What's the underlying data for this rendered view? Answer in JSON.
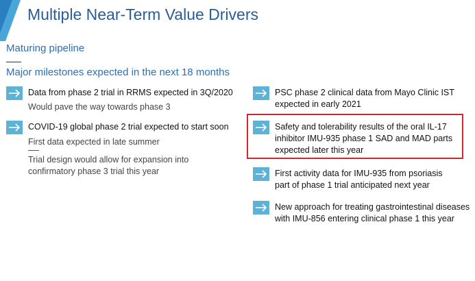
{
  "slide": {
    "title": "Multiple Near-Term Value Drivers",
    "subtitle": "Maturing pipeline",
    "section_heading": "Major milestones expected in the next 18 months"
  },
  "left_column": [
    {
      "heading": "Data from phase 2 trial in RRMS expected in 3Q/2020",
      "subs": [
        "Would pave the way towards phase 3"
      ]
    },
    {
      "heading": "COVID-19 global phase 2 trial expected to start soon",
      "subs": [
        "First data expected in late summer",
        "Trial design would allow for expansion into",
        "confirmatory phase 3 trial this year"
      ]
    }
  ],
  "right_column": [
    {
      "lines": [
        "PSC phase 2 clinical data from Mayo Clinic IST",
        "expected in early 2021"
      ]
    },
    {
      "lines": [
        "Safety and tolerability results of the oral IL-17",
        "inhibitor IMU-935 phase 1 SAD and MAD parts",
        "expected later this year"
      ],
      "highlighted": true
    },
    {
      "lines": [
        "First activity data for IMU-935 from psoriasis",
        "part of phase 1 trial anticipated next year"
      ]
    },
    {
      "lines": [
        "New approach for treating gastrointestinal diseases",
        "with IMU-856 entering clinical phase 1 this year"
      ]
    }
  ],
  "colors": {
    "title": "#2a5c96",
    "subtitle": "#2a6fb8",
    "arrow_bg": "#5eb2d6",
    "highlight": "#d4262c"
  },
  "icons": {
    "bullet": "arrow-right-icon",
    "corner": "corner-decoration-icon"
  }
}
